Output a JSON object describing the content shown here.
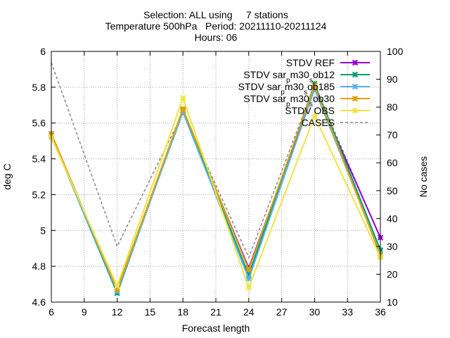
{
  "chart_data": {
    "type": "line",
    "title_lines": [
      "Selection: ALL using     7 stations",
      "Temperature 500hPa   Period: 20211110-20211124",
      "Hours: 06"
    ],
    "xlabel": "Forecast length",
    "ylabel": "deg C",
    "y2label": "No cases",
    "x": [
      6,
      12,
      18,
      24,
      30,
      36
    ],
    "xlim": [
      6,
      36
    ],
    "ylim": [
      4.6,
      6.0
    ],
    "y2lim": [
      10,
      100
    ],
    "xticks": [
      "6",
      "9",
      "12",
      "15",
      "18",
      "21",
      "24",
      "27",
      "30",
      "33",
      "36"
    ],
    "yticks": [
      "4.6",
      "4.8",
      "5",
      "5.2",
      "5.4",
      "5.6",
      "5.8",
      "6"
    ],
    "y2ticks": [
      "10",
      "20",
      "30",
      "40",
      "50",
      "60",
      "70",
      "80",
      "90",
      "100"
    ],
    "grid": true,
    "legend_position": "top-right",
    "series": [
      {
        "name": "STDV REF",
        "color": "#9400d3",
        "marker": "x",
        "axis": "y",
        "values": [
          5.54,
          4.67,
          5.67,
          4.79,
          5.79,
          4.96
        ]
      },
      {
        "name": "STDV sar_{p}m30_{s}ob12",
        "color": "#009e73",
        "marker": "x",
        "axis": "y",
        "values": [
          5.53,
          4.65,
          5.67,
          4.75,
          5.82,
          4.89
        ]
      },
      {
        "name": "STDV sar_{p}m30_{s}ob185",
        "color": "#56b4e9",
        "marker": "x",
        "axis": "y",
        "values": [
          5.53,
          4.66,
          5.66,
          4.73,
          5.79,
          4.87
        ]
      },
      {
        "name": "STDV sar_{p}m30_{s}ob30",
        "color": "#e69f00",
        "marker": "x",
        "axis": "y",
        "values": [
          5.54,
          4.67,
          5.68,
          4.78,
          5.81,
          4.86
        ]
      },
      {
        "name": "STDV OBS",
        "color": "#f0e442",
        "marker": "x",
        "axis": "y",
        "values": [
          5.52,
          4.69,
          5.74,
          4.68,
          5.64,
          4.85
        ]
      },
      {
        "name": "CASES",
        "color": "#888888",
        "marker": "none",
        "dash": true,
        "axis": "y2",
        "values": [
          96,
          30,
          78,
          26,
          88,
          33
        ]
      }
    ]
  }
}
